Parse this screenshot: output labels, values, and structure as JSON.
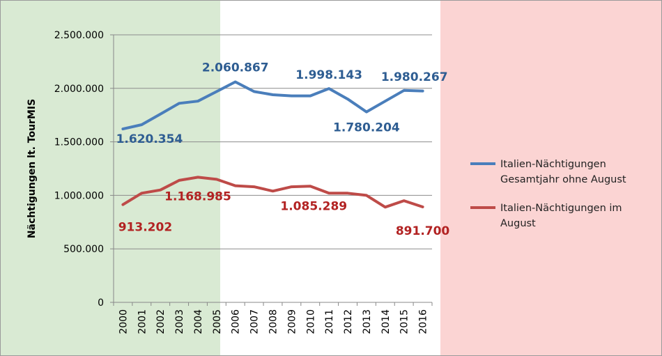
{
  "chart_data": {
    "type": "line",
    "title": "",
    "xlabel": "",
    "ylabel": "Nächtigungen lt. TourMIS",
    "categories": [
      "2000",
      "2001",
      "2002",
      "2003",
      "2004",
      "2005",
      "2006",
      "2007",
      "2008",
      "2009",
      "2010",
      "2011",
      "2012",
      "2013",
      "2014",
      "2015",
      "2016"
    ],
    "ylim": [
      0,
      2500000
    ],
    "yticks": [
      0,
      500000,
      1000000,
      1500000,
      2000000,
      2500000
    ],
    "ytick_labels": [
      "0",
      "500.000",
      "1.000.000",
      "1.500.000",
      "2.000.000",
      "2.500.000"
    ],
    "grid": true,
    "legend_position": "right",
    "background_bands": [
      "#d9ead3",
      "#ffffff",
      "#fbd4d3"
    ],
    "series": [
      {
        "name": "Italien-Nächtigungen Gesamtjahr ohne August",
        "legend_lines": [
          "Italien-Nächtigungen",
          "Gesamtjahr ohne August"
        ],
        "color": "#4a7ebb",
        "label_color": "#2e5d92",
        "values": [
          1620354,
          1660000,
          1760000,
          1860000,
          1880000,
          1970000,
          2060867,
          1970000,
          1940000,
          1930000,
          1930000,
          1998143,
          1900000,
          1780204,
          1880000,
          1980267,
          1975000
        ],
        "data_labels": [
          {
            "index": 0,
            "text": "1.620.354"
          },
          {
            "index": 6,
            "text": "2.060.867"
          },
          {
            "index": 11,
            "text": "1.998.143"
          },
          {
            "index": 13,
            "text": "1.780.204"
          },
          {
            "index": 15,
            "text": "1.980.267"
          }
        ]
      },
      {
        "name": "Italien-Nächtigungen im August",
        "legend_lines": [
          "Italien-Nächtigungen im",
          "August"
        ],
        "color": "#be4b48",
        "label_color": "#b22222",
        "values": [
          913202,
          1020000,
          1050000,
          1140000,
          1168985,
          1150000,
          1090000,
          1080000,
          1040000,
          1080000,
          1085289,
          1020000,
          1020000,
          1000000,
          890000,
          950000,
          891700
        ],
        "data_labels": [
          {
            "index": 0,
            "text": "913.202"
          },
          {
            "index": 4,
            "text": "1.168.985"
          },
          {
            "index": 10,
            "text": "1.085.289"
          },
          {
            "index": 16,
            "text": "891.700"
          }
        ]
      }
    ]
  }
}
